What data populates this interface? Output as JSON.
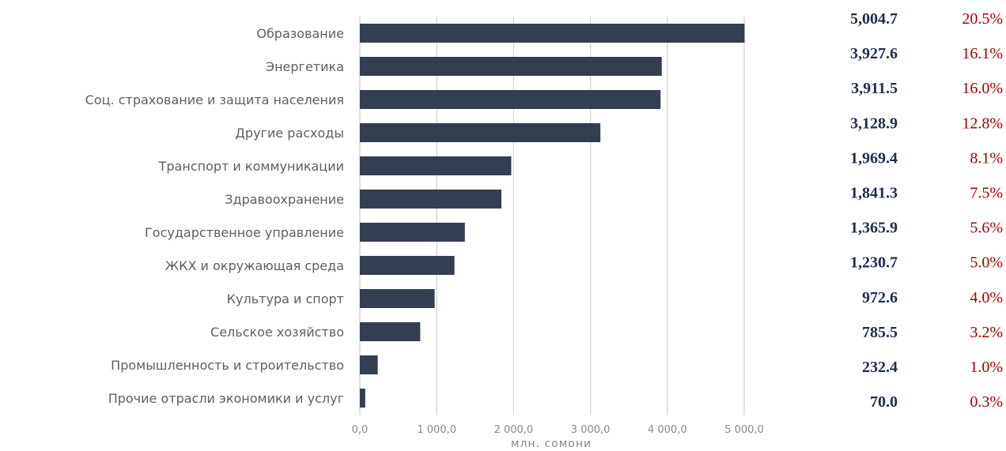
{
  "colors": {
    "bar": "#333f50",
    "amount": "#1f2d4d",
    "share": "#a30000"
  },
  "chart_data": {
    "type": "bar",
    "orientation": "horizontal",
    "categories": [
      "Образование",
      "Энергетика",
      "Соц. страхование и защита населения",
      "Другие расходы",
      "Транспорт и коммуникации",
      "Здравоохранение",
      "Государственное управление",
      "ЖКХ и окружающая среда",
      "Культура и спорт",
      "Сельское хозяйство",
      "Промышленность и строительство",
      "Прочие отрасли экономики и услуг"
    ],
    "values": [
      5004.7,
      3927.6,
      3911.5,
      3128.9,
      1969.4,
      1841.3,
      1365.9,
      1230.7,
      972.6,
      785.5,
      232.4,
      70.0
    ],
    "value_labels": [
      "5,004.7",
      "3,927.6",
      "3,911.5",
      "3,128.9",
      "1,969.4",
      "1,841.3",
      "1,365.9",
      "1,230.7",
      "972.6",
      "785.5",
      "232.4",
      "70.0"
    ],
    "share_labels": [
      "20.5%",
      "16.1%",
      "16.0%",
      "12.8%",
      "8.1%",
      "7.5%",
      "5.6%",
      "5.0%",
      "4.0%",
      "3.2%",
      "1.0%",
      "0.3%"
    ],
    "xlabel": "млн. сомони",
    "xlim": [
      0,
      5000
    ],
    "xticks": [
      0,
      1000,
      2000,
      3000,
      4000,
      5000
    ],
    "xtick_labels": [
      "0,0",
      "1 000,0",
      "2 000,0",
      "3 000,0",
      "4 000,0",
      "5 000,0"
    ],
    "grid": true
  }
}
